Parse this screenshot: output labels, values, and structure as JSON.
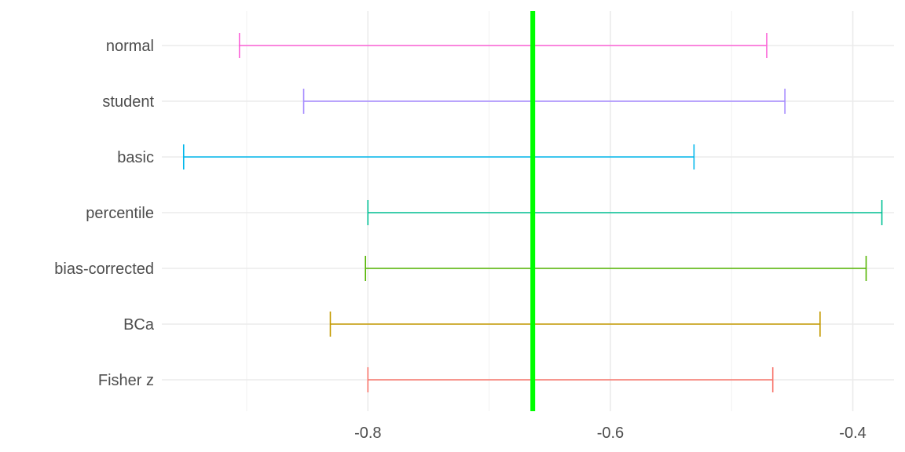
{
  "chart_data": {
    "type": "errorbar",
    "title": "",
    "xlabel": "",
    "ylabel": "",
    "xlim": [
      -0.97,
      -0.366
    ],
    "x_ticks": [
      -0.8,
      -0.6,
      -0.4
    ],
    "x_tick_labels": [
      "-0.8",
      "-0.6",
      "-0.4"
    ],
    "x_minor_ticks": [
      -0.9,
      -0.7,
      -0.5
    ],
    "grid": true,
    "legend": "none",
    "reference_line": {
      "value": -0.664,
      "color": "#00ff00"
    },
    "categories": [
      "Fisher z",
      "BCa",
      "bias-corrected",
      "percentile",
      "basic",
      "student",
      "normal"
    ],
    "intervals": [
      {
        "label": "Fisher z",
        "lower": -0.8,
        "upper": -0.466,
        "color": "#f8766d"
      },
      {
        "label": "BCa",
        "lower": -0.831,
        "upper": -0.427,
        "color": "#c49a00"
      },
      {
        "label": "bias-corrected",
        "lower": -0.802,
        "upper": -0.389,
        "color": "#53b400"
      },
      {
        "label": "percentile",
        "lower": -0.8,
        "upper": -0.376,
        "color": "#00c094"
      },
      {
        "label": "basic",
        "lower": -0.952,
        "upper": -0.531,
        "color": "#00b6eb"
      },
      {
        "label": "student",
        "lower": -0.853,
        "upper": -0.456,
        "color": "#a58aff"
      },
      {
        "label": "normal",
        "lower": -0.906,
        "upper": -0.471,
        "color": "#fb61d7"
      }
    ]
  }
}
